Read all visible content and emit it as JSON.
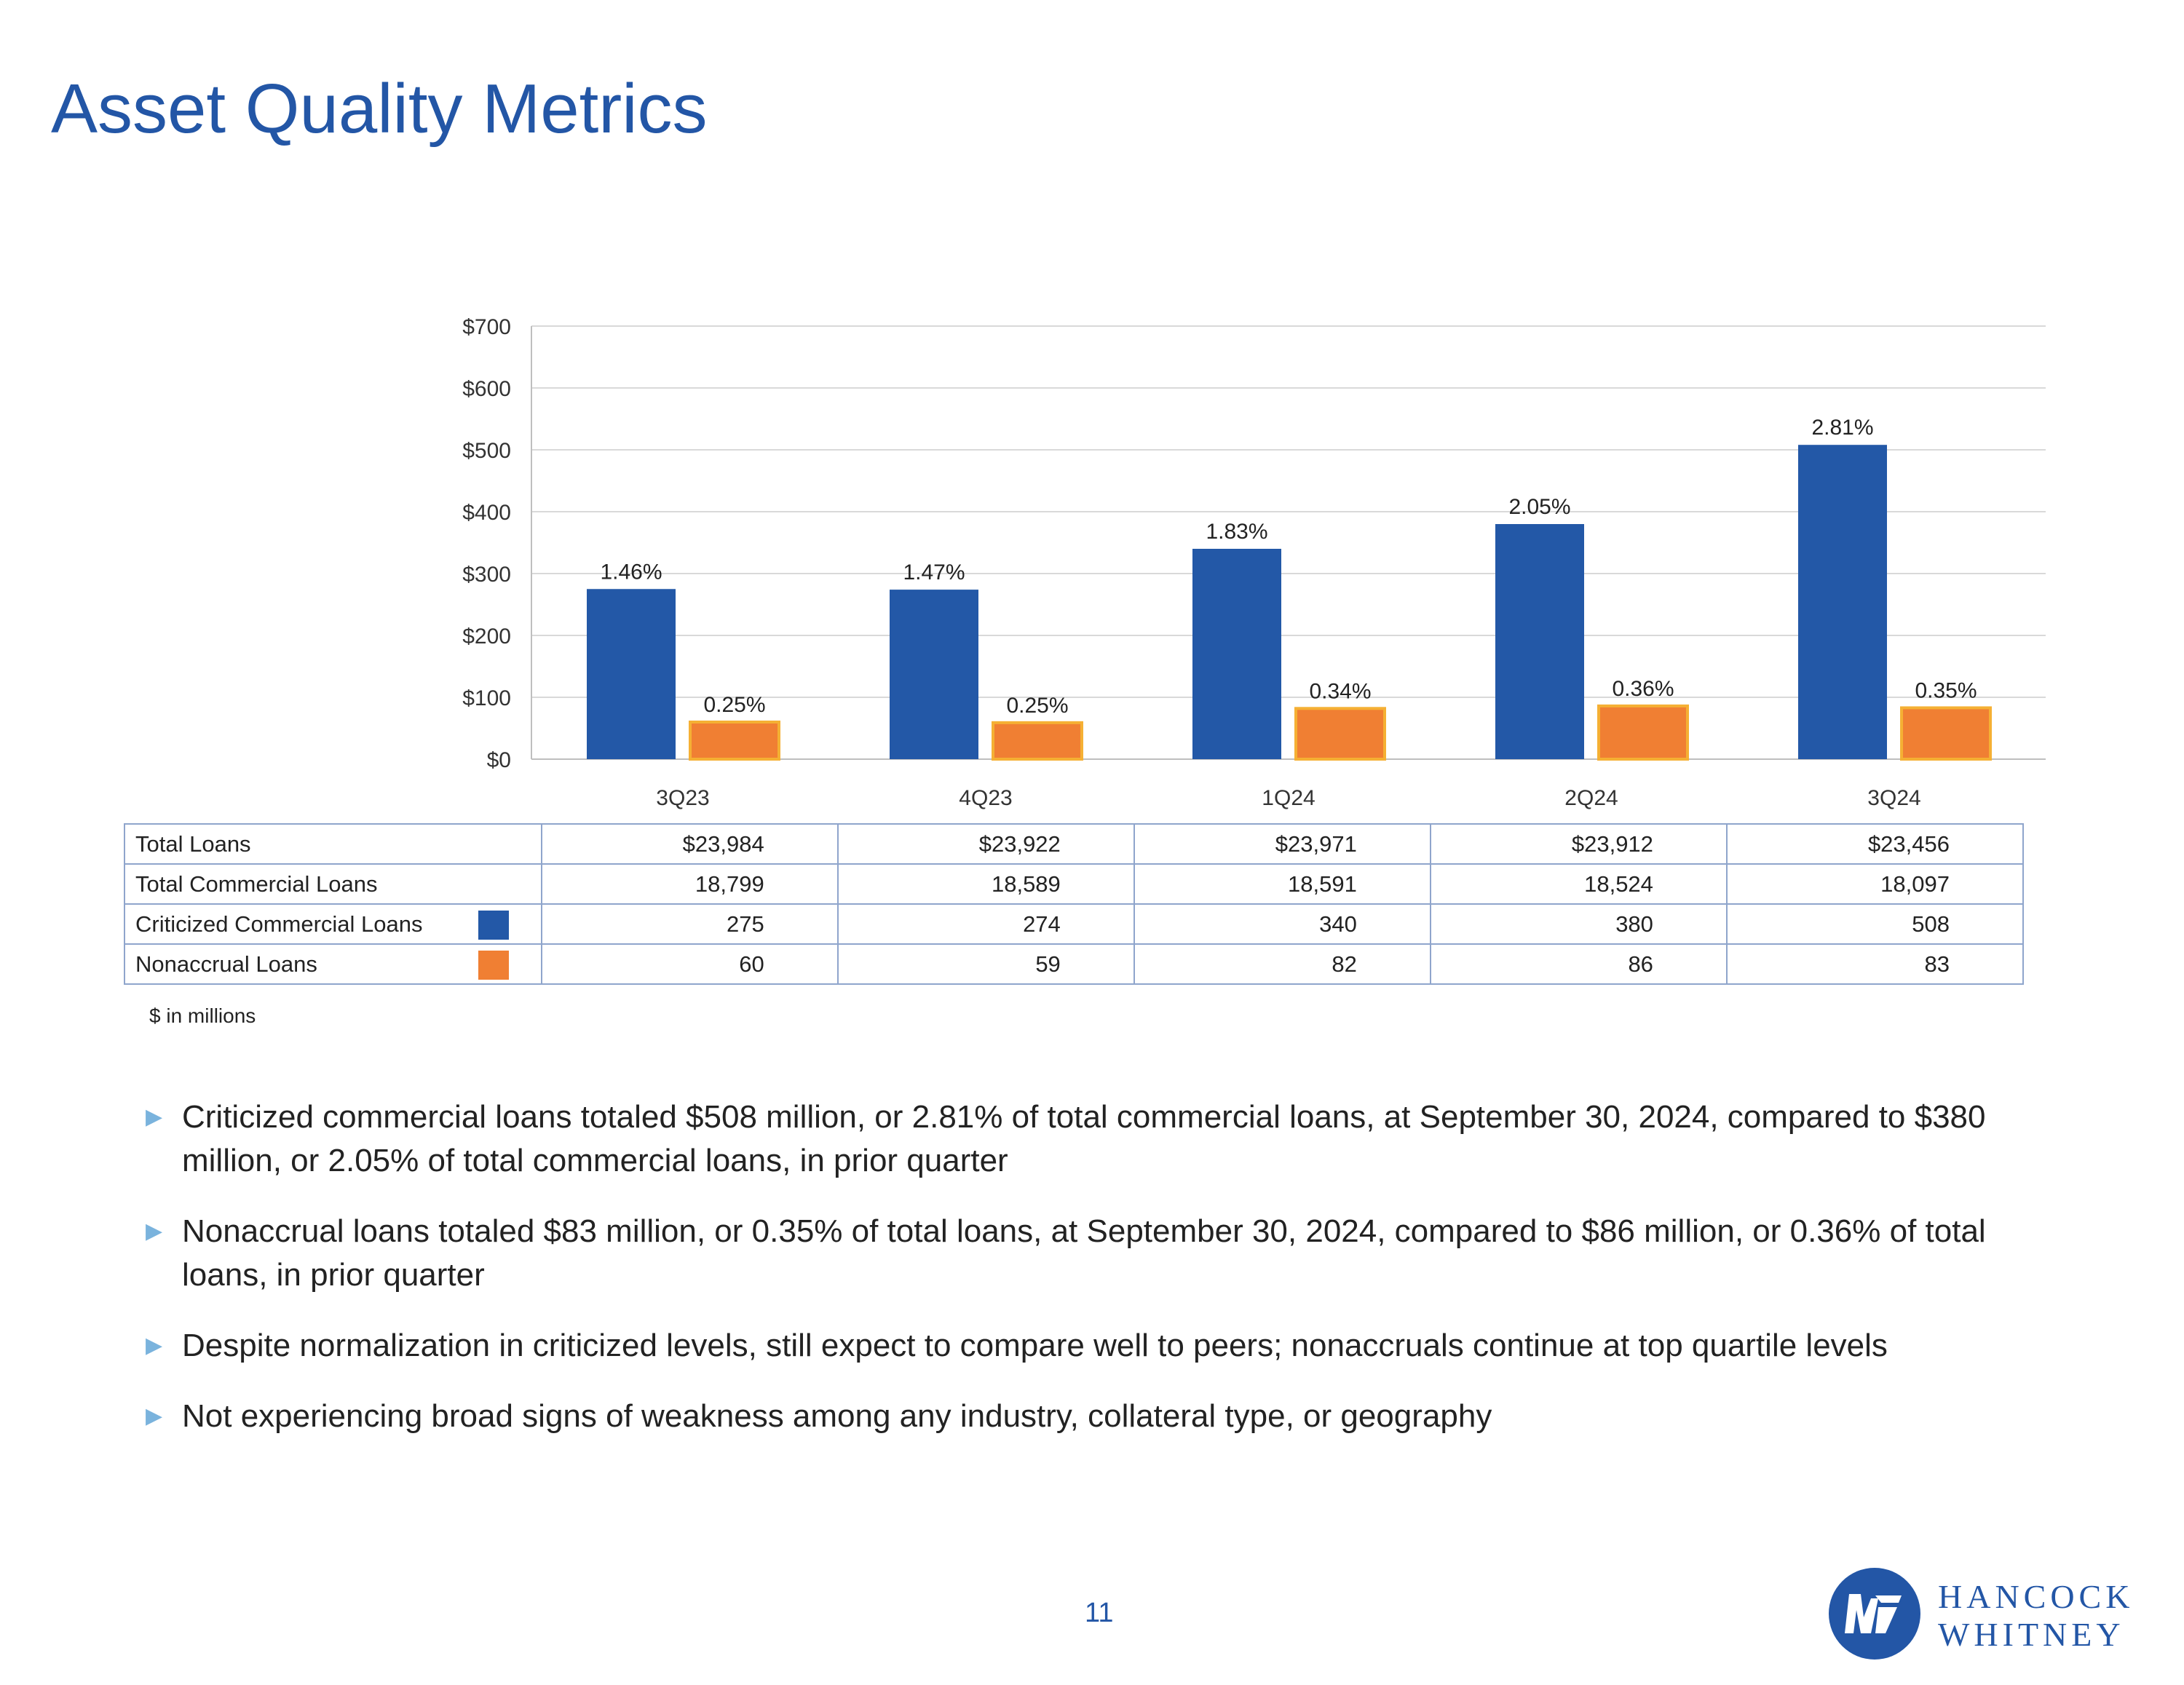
{
  "title": "Asset Quality Metrics",
  "colors": {
    "criticized": "#2358a7",
    "nonaccrual": "#f07f33",
    "nonaccrual_border": "#f5b034",
    "title": "#2356a6"
  },
  "chart_data": {
    "type": "bar",
    "categories": [
      "3Q23",
      "4Q23",
      "1Q24",
      "2Q24",
      "3Q24"
    ],
    "series": [
      {
        "name": "Criticized Commercial Loans",
        "values": [
          275,
          274,
          340,
          380,
          508
        ],
        "labels": [
          "1.46%",
          "1.47%",
          "1.83%",
          "2.05%",
          "2.81%"
        ]
      },
      {
        "name": "Nonaccrual Loans",
        "values": [
          60,
          59,
          82,
          86,
          83
        ],
        "labels": [
          "0.25%",
          "0.25%",
          "0.34%",
          "0.36%",
          "0.35%"
        ]
      }
    ],
    "ylim": [
      0,
      700
    ],
    "yticks": [
      0,
      100,
      200,
      300,
      400,
      500,
      600,
      700
    ],
    "ytick_labels": [
      "$0",
      "$100",
      "$200",
      "$300",
      "$400",
      "$500",
      "$600",
      "$700"
    ],
    "grid": true
  },
  "table": {
    "rows": [
      {
        "label": "Total Loans",
        "values": [
          "$23,984",
          "$23,922",
          "$23,971",
          "$23,912",
          "$23,456"
        ]
      },
      {
        "label": "Total Commercial Loans",
        "values": [
          "18,799",
          "18,589",
          "18,591",
          "18,524",
          "18,097"
        ]
      },
      {
        "label": "Criticized Commercial Loans",
        "values": [
          "275",
          "274",
          "340",
          "380",
          "508"
        ]
      },
      {
        "label": "Nonaccrual Loans",
        "values": [
          "60",
          "59",
          "82",
          "86",
          "83"
        ]
      }
    ],
    "units_note": "$ in millions"
  },
  "bullets": [
    "Criticized commercial loans totaled $508 million, or 2.81% of total commercial loans, at September 30, 2024, compared to $380 million, or 2.05% of total commercial loans, in prior quarter",
    "Nonaccrual loans totaled $83 million, or 0.35% of total loans, at September 30, 2024, compared to $86 million, or 0.36% of total loans, in prior quarter",
    "Despite normalization in criticized levels, still expect to compare well to peers; nonaccruals continue at top quartile levels",
    "Not experiencing broad signs of weakness among any industry, collateral type, or geography"
  ],
  "bullet_icon": "triangle-right-icon",
  "page_number": "11",
  "logo": {
    "line1": "HANCOCK",
    "line2": "WHITNEY"
  }
}
